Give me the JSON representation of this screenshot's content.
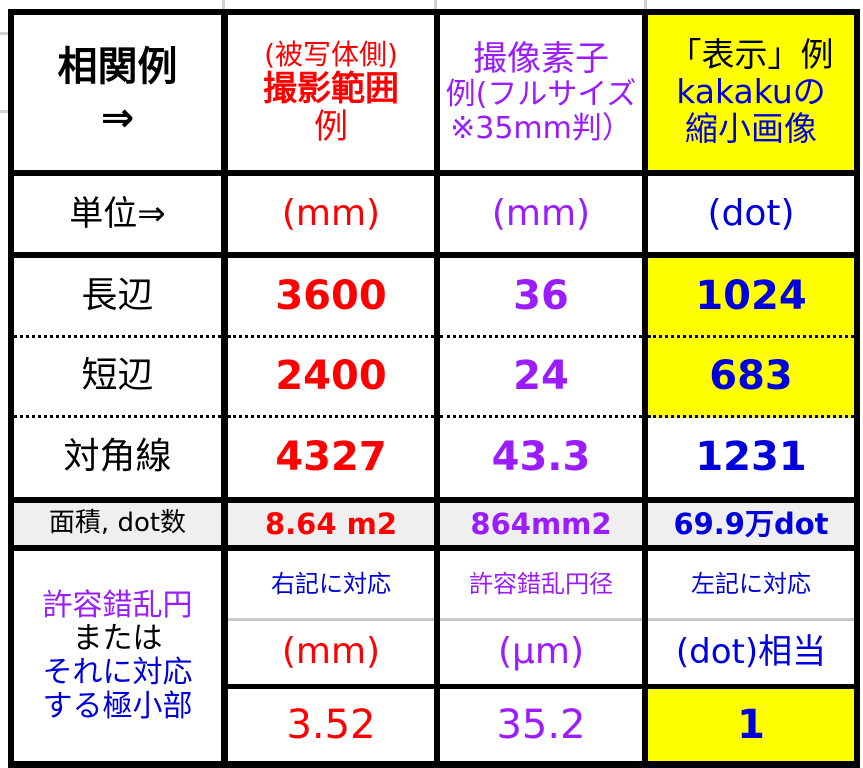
{
  "header": {
    "corner": [
      "相関例",
      "⇒"
    ],
    "col1": {
      "sub": "(被写体側)",
      "main": "撮影範囲",
      "tail": "例"
    },
    "col2": [
      "撮像素子",
      "例(フルサイズ",
      "※35mm判）"
    ],
    "col3": [
      "「表示」例",
      "kakakuの",
      "縮小画像"
    ]
  },
  "rows": [
    {
      "label": "単位⇒",
      "values": [
        "(mm)",
        "(mm)",
        "(dot)"
      ]
    },
    {
      "label": "長辺",
      "values": [
        "3600",
        "36",
        "1024"
      ]
    },
    {
      "label": "短辺",
      "values": [
        "2400",
        "24",
        "683"
      ]
    },
    {
      "label": "対角線",
      "values": [
        "4327",
        "43.3",
        "1231"
      ]
    },
    {
      "label": "面積, dot数",
      "values": [
        "8.64 m2",
        "864mm2",
        "69.9万dot"
      ]
    }
  ],
  "coc": {
    "label": [
      "許容錯乱円",
      "または",
      "それに対応",
      "する極小部"
    ],
    "notes": [
      "右記に対応",
      "許容錯乱円径",
      "左記に対応"
    ],
    "units": [
      "(mm)",
      "(µm)",
      "(dot)相当"
    ],
    "values": [
      "3.52",
      "35.2",
      "1"
    ]
  },
  "colors": {
    "red": "#ff0000",
    "purple": "#9a1cff",
    "blue": "#0000dd",
    "highlight": "#ffff00",
    "gray_row": "#efefef"
  }
}
